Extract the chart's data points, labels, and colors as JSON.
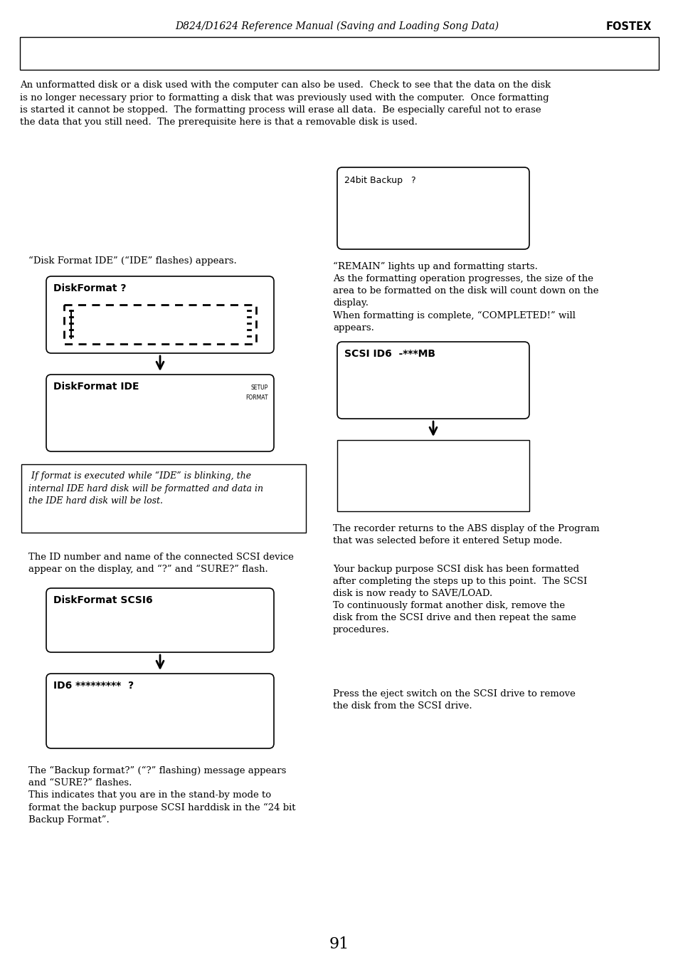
{
  "title_text": "D824/D1624 Reference Manual (Saving and Loading Song Data)",
  "title_brand": "FOSTEX",
  "page_number": "91",
  "background_color": "#ffffff",
  "intro_text": "An unformatted disk or a disk used with the computer can also be used.  Check to see that the data on the disk\nis no longer necessary prior to formatting a disk that was previously used with the computer.  Once formatting\nis started it cannot be stopped.  The formatting process will erase all data.  Be especially careful not to erase\nthe data that you still need.  The prerequisite here is that a removable disk is used.",
  "left_caption1": "“Disk Format IDE” (“IDE” flashes) appears.",
  "lcd1_text": "DiskFormat ?",
  "lcd2_text": "DiskFormat IDE",
  "lcd2_small1": "SETUP",
  "lcd2_small2": "FORMAT",
  "caution_text": " If format is executed while “IDE” is blinking, the\ninternal IDE hard disk will be formatted and data in\nthe IDE hard disk will be lost.",
  "right_caption1": "“REMAIN” lights up and formatting starts.\nAs the formatting operation progresses, the size of the\narea to be formatted on the disk will count down on the\ndisplay.\nWhen formatting is complete, “COMPLETED!” will\nappears.",
  "lcd_right1_text": "24bit Backup   ?",
  "lcd_right2_text": "SCSI ID6  -***MB",
  "right_caption2": "The recorder returns to the ABS display of the Program\nthat was selected before it entered Setup mode.",
  "left_caption2": "The ID number and name of the connected SCSI device\nappear on the display, and “?” and “SURE?” flash.",
  "lcd_left3_text": "DiskFormat SCSI6",
  "lcd_left4_text": "ID6 *********  ?",
  "right_caption3": "Your backup purpose SCSI disk has been formatted\nafter completing the steps up to this point.  The SCSI\ndisk is now ready to SAVE/LOAD.\nTo continuously format another disk, remove the\ndisk from the SCSI drive and then repeat the same\nprocedures.",
  "right_caption4": "Press the eject switch on the SCSI drive to remove\nthe disk from the SCSI drive.",
  "left_caption3": "The “Backup format?” (“?” flashing) message appears\nand “SURE?” flashes.\nThis indicates that you are in the stand-by mode to\nformat the backup purpose SCSI harddisk in the “24 bit\nBackup Format”."
}
